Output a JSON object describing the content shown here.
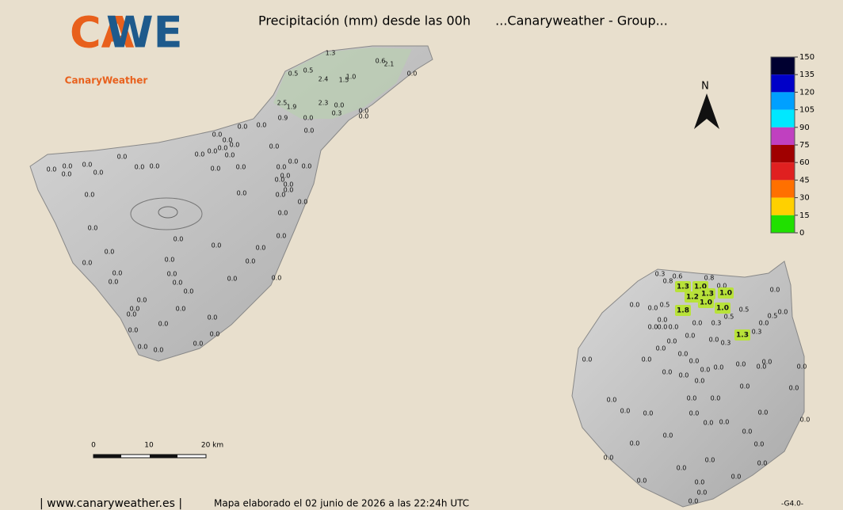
{
  "header": {
    "title": "Precipitación (mm) desde las 00h",
    "subtitle": "...Canaryweather - Group...",
    "logo_left": "CA",
    "logo_right": "WE",
    "logo_name": "CanaryWeather"
  },
  "north": "N",
  "scale_bar": [
    "0",
    "10",
    "20 km"
  ],
  "legend": [
    150,
    135,
    120,
    105,
    90,
    75,
    60,
    45,
    30,
    15,
    0
  ],
  "footer": {
    "site": "| www.canaryweather.es |",
    "credit": "Mapa elaborado el 02 junio de 2026 a las 22:24h UTC",
    "version": "-G4.0-"
  },
  "tenerife": [
    "1.3",
    "0.6",
    "2.1",
    "0.5",
    "0.5",
    "2.4",
    "1.0",
    "1.5",
    "0.0",
    "2.5",
    "1.9",
    "2.3",
    "0.0",
    "0.3",
    "0.0",
    "0.0",
    "0.9",
    "0.0",
    "0.0",
    "0.0",
    "0.0",
    "0.0",
    "0.0",
    "0.0",
    "0.0",
    "0.0",
    "0.0",
    "0.0",
    "0.0",
    "0.0",
    "0.0",
    "0.0",
    "0.0",
    "0.0",
    "0.0",
    "0.0",
    "0.0",
    "0.0",
    "0.0",
    "0.0",
    "0.0",
    "0.0",
    "0.0",
    "0.0",
    "0.0",
    "0.0",
    "0.0",
    "0.0",
    "0.0",
    "0.0",
    "0.0",
    "0.0",
    "0.0",
    "0.0",
    "0.0",
    "0.0",
    "0.0",
    "0.0",
    "0.0",
    "0.0",
    "0.0",
    "0.0",
    "0.0",
    "0.0",
    "0.0",
    "0.0",
    "0.0",
    "0.0",
    "0.0",
    "0.0",
    "0.0",
    "0.0",
    "0.0",
    "0.0",
    "0.0",
    "0.0",
    "0.0",
    "0.0"
  ],
  "gran_canaria": {
    "highlighted": [
      "1.3",
      "1.0",
      "1.2",
      "1.3",
      "1.0",
      "1.0",
      "1.0",
      "1.8",
      "1.3"
    ],
    "stations": [
      "0.3",
      "0.6",
      "0.8",
      "0.8",
      "0.0",
      "0.5",
      "0.0",
      "0.0",
      "0.5",
      "0.5",
      "0.3",
      "0.3",
      "0.3",
      "0.5",
      "0.0",
      "0.0",
      "0.0",
      "0.0",
      "0.0",
      "0.0",
      "0.0",
      "0.0",
      "0.0",
      "0.0",
      "0.0",
      "0.0",
      "0.0",
      "0.0",
      "0.0",
      "0.0",
      "0.0",
      "0.0",
      "0.0",
      "0.0",
      "0.0",
      "0.0",
      "0.0",
      "0.0",
      "0.0",
      "0.0",
      "0.0",
      "0.0",
      "0.0",
      "0.0",
      "0.0",
      "0.0",
      "0.0",
      "0.0",
      "0.0",
      "0.0",
      "0.0",
      "0.0",
      "0.0",
      "0.0",
      "0.0",
      "0.0",
      "0.0",
      "0.0",
      "0.0",
      "0.0",
      "0.0",
      "0.0",
      "0.0",
      "0.0"
    ]
  }
}
